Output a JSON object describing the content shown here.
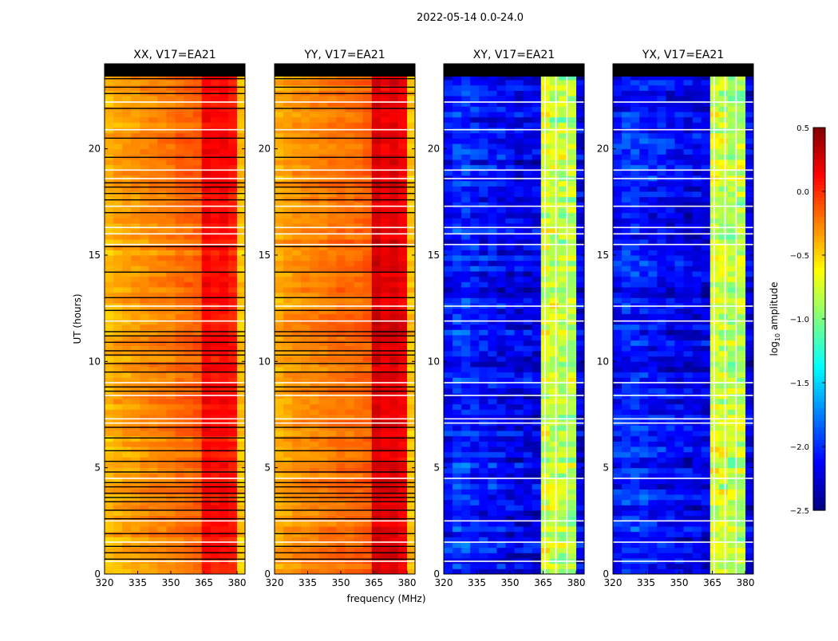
{
  "chart_data": {
    "type": "heatmap",
    "title": "2022-05-14 0.0-24.0",
    "xlabel": "frequency (MHz)",
    "ylabel": "UT (hours)",
    "xlim": [
      320,
      383.6
    ],
    "ylim": [
      0,
      24
    ],
    "xticks": [
      320,
      335,
      350,
      365,
      380
    ],
    "yticks": [
      0,
      5,
      10,
      15,
      20
    ],
    "freq_bins_mhz": [
      320,
      324,
      328,
      332,
      336,
      340,
      344,
      348,
      352,
      356,
      360,
      364,
      368,
      372,
      376,
      380
    ],
    "no_data_above_hour": 23.4,
    "panels": [
      {
        "title": "XX, V17=EA21",
        "profile": [
          -0.42,
          -0.38,
          -0.35,
          -0.33,
          -0.3,
          -0.28,
          -0.26,
          -0.24,
          -0.2,
          -0.18,
          -0.15,
          0.12,
          0.08,
          0.1,
          0.05,
          -0.45
        ],
        "row_flag_color": "#000000"
      },
      {
        "title": "YY, V17=EA21",
        "profile": [
          -0.38,
          -0.34,
          -0.3,
          -0.28,
          -0.26,
          -0.24,
          -0.22,
          -0.2,
          -0.2,
          -0.18,
          -0.15,
          0.25,
          0.18,
          0.22,
          0.15,
          -0.45
        ],
        "row_flag_color": "#000000"
      },
      {
        "title": "XY, V17=EA21",
        "profile": [
          -2.1,
          -2.0,
          -2.0,
          -2.05,
          -2.1,
          -2.1,
          -2.15,
          -2.15,
          -2.2,
          -2.2,
          -2.2,
          -0.75,
          -0.8,
          -0.85,
          -0.85,
          -2.2
        ],
        "row_flag_color": "#ffffff"
      },
      {
        "title": "YX, V17=EA21",
        "profile": [
          -2.1,
          -2.0,
          -2.0,
          -2.05,
          -2.1,
          -2.1,
          -2.15,
          -2.15,
          -2.2,
          -2.2,
          -2.2,
          -0.75,
          -0.8,
          -0.85,
          -0.85,
          -2.2
        ],
        "row_flag_color": "#ffffff"
      }
    ],
    "flagged_hours_white": [
      22.2,
      20.9,
      19.0,
      18.6,
      17.3,
      16.3,
      16.0,
      15.5,
      12.6,
      11.9,
      9.0,
      8.4,
      7.3,
      7.1,
      4.5,
      2.5,
      1.5,
      0.6
    ],
    "flagged_hours_black": [
      23.3,
      22.9,
      22.6,
      21.9,
      20.5,
      19.6,
      18.4,
      18.2,
      17.9,
      17.6,
      17.0,
      15.4,
      14.2,
      13.0,
      12.4,
      11.4,
      11.2,
      10.9,
      10.5,
      10.3,
      9.9,
      9.5,
      8.8,
      8.6,
      6.9,
      6.4,
      5.8,
      5.3,
      4.8,
      4.3,
      4.1,
      3.8,
      3.6,
      3.4,
      3.0,
      2.6,
      1.9,
      1.3,
      1.0,
      0.7
    ],
    "colorbar": {
      "label": "log10 amplitude",
      "label_main": "log",
      "label_sub": "10",
      "label_rest": " amplitude",
      "range": [
        -2.5,
        0.5
      ],
      "ticks": [
        0.5,
        0.0,
        -0.5,
        -1.0,
        -1.5,
        -2.0,
        -2.5
      ],
      "tick_labels": [
        "0.5",
        "0.0",
        "−0.5",
        "−1.0",
        "−1.5",
        "−2.0",
        "−2.5"
      ],
      "colormap": "jet"
    }
  }
}
